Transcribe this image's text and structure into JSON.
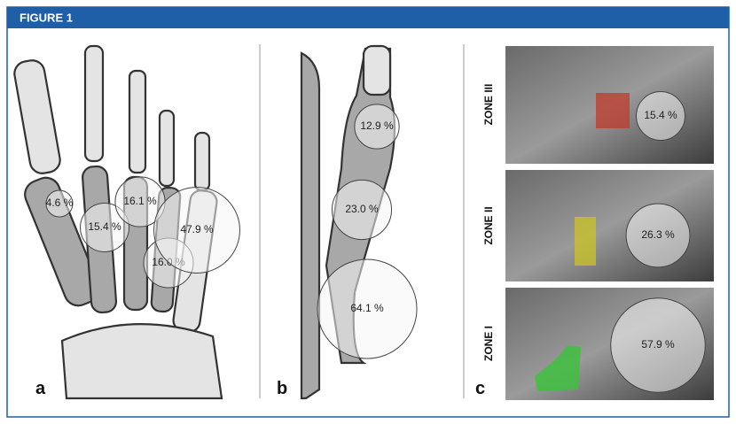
{
  "header": {
    "title": "FIGURE 1"
  },
  "panels": [
    {
      "label": "a",
      "regions": [
        {
          "value": 4.6,
          "label": "4.6 %"
        },
        {
          "value": 15.4,
          "label": "15.4 %"
        },
        {
          "value": 16.1,
          "label": "16.1 %"
        },
        {
          "value": 16.0,
          "label": "16.0 %"
        },
        {
          "value": 47.9,
          "label": "47.9 %"
        }
      ]
    },
    {
      "label": "b",
      "regions": [
        {
          "value": 12.9,
          "label": "12.9 %"
        },
        {
          "value": 23.0,
          "label": "23.0 %"
        },
        {
          "value": 64.1,
          "label": "64.1 %"
        }
      ]
    },
    {
      "label": "c",
      "regions": [
        {
          "zone": "ZONE III",
          "value": 15.4,
          "label": "15.4 %"
        },
        {
          "zone": "ZONE II",
          "value": 26.3,
          "label": "26.3 %"
        },
        {
          "zone": "ZONE I",
          "value": 57.9,
          "label": "57.9 %"
        }
      ]
    }
  ]
}
